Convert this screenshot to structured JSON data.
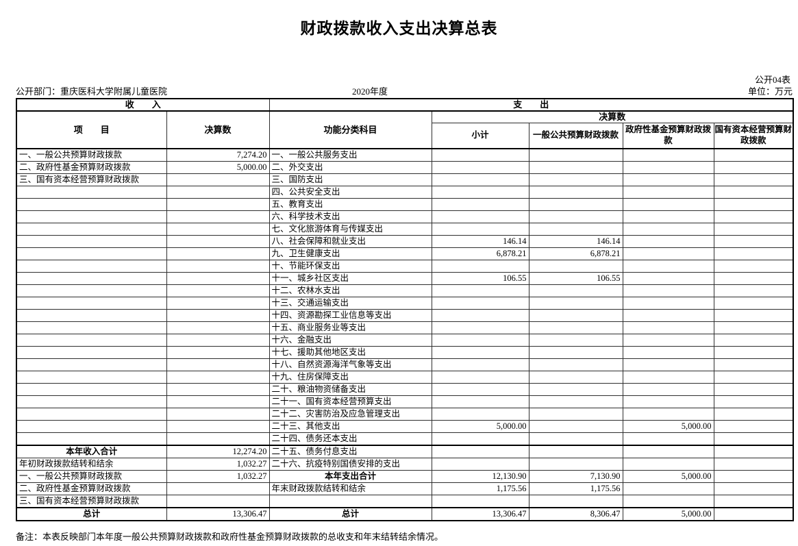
{
  "page": {
    "title": "财政拨款收入支出决算总表",
    "form_number": "公开04表",
    "unit_label": "单位：万元",
    "department": "公开部门：重庆医科大学附属儿童医院",
    "fiscal_year": "2020年度",
    "footnote": "备注：本表反映部门本年度一般公共预算财政拨款和政府性基金预算财政拨款的总收支和年末结转结余情况。"
  },
  "table": {
    "income_section_header": "收　　入",
    "expense_section_header": "支　　出",
    "columns": {
      "item": "项　　目",
      "income_amount": "决算数",
      "function_subject": "功能分类科目",
      "expense_amount_group": "决算数",
      "subtotal": "小计",
      "general_public_budget": "一般公共预算财政拨款",
      "gov_fund_budget": "政府性基金预算财政拨款",
      "state_capital_budget": "国有资本经营预算财政拨款"
    },
    "rows": [
      {
        "income_item": "一、一般公共预算财政拨款",
        "income_amount": "7,274.20",
        "expense_item": "一、一般公共服务支出",
        "subtotal": "",
        "general": "",
        "gov_fund": "",
        "state_capital": ""
      },
      {
        "income_item": "二、政府性基金预算财政拨款",
        "income_amount": "5,000.00",
        "expense_item": "二、外交支出",
        "subtotal": "",
        "general": "",
        "gov_fund": "",
        "state_capital": ""
      },
      {
        "income_item": "三、国有资本经营预算财政拨款",
        "income_amount": "",
        "expense_item": "三、国防支出",
        "subtotal": "",
        "general": "",
        "gov_fund": "",
        "state_capital": ""
      },
      {
        "income_item": "",
        "income_amount": "",
        "expense_item": "四、公共安全支出",
        "subtotal": "",
        "general": "",
        "gov_fund": "",
        "state_capital": ""
      },
      {
        "income_item": "",
        "income_amount": "",
        "expense_item": "五、教育支出",
        "subtotal": "",
        "general": "",
        "gov_fund": "",
        "state_capital": ""
      },
      {
        "income_item": "",
        "income_amount": "",
        "expense_item": "六、科学技术支出",
        "subtotal": "",
        "general": "",
        "gov_fund": "",
        "state_capital": ""
      },
      {
        "income_item": "",
        "income_amount": "",
        "expense_item": "七、文化旅游体育与传媒支出",
        "subtotal": "",
        "general": "",
        "gov_fund": "",
        "state_capital": ""
      },
      {
        "income_item": "",
        "income_amount": "",
        "expense_item": "八、社会保障和就业支出",
        "subtotal": "146.14",
        "general": "146.14",
        "gov_fund": "",
        "state_capital": ""
      },
      {
        "income_item": "",
        "income_amount": "",
        "expense_item": "九、卫生健康支出",
        "subtotal": "6,878.21",
        "general": "6,878.21",
        "gov_fund": "",
        "state_capital": ""
      },
      {
        "income_item": "",
        "income_amount": "",
        "expense_item": "十、节能环保支出",
        "subtotal": "",
        "general": "",
        "gov_fund": "",
        "state_capital": ""
      },
      {
        "income_item": "",
        "income_amount": "",
        "expense_item": "十一、城乡社区支出",
        "subtotal": "106.55",
        "general": "106.55",
        "gov_fund": "",
        "state_capital": ""
      },
      {
        "income_item": "",
        "income_amount": "",
        "expense_item": "十二、农林水支出",
        "subtotal": "",
        "general": "",
        "gov_fund": "",
        "state_capital": ""
      },
      {
        "income_item": "",
        "income_amount": "",
        "expense_item": "十三、交通运输支出",
        "subtotal": "",
        "general": "",
        "gov_fund": "",
        "state_capital": ""
      },
      {
        "income_item": "",
        "income_amount": "",
        "expense_item": "十四、资源勘探工业信息等支出",
        "subtotal": "",
        "general": "",
        "gov_fund": "",
        "state_capital": ""
      },
      {
        "income_item": "",
        "income_amount": "",
        "expense_item": "十五、商业服务业等支出",
        "subtotal": "",
        "general": "",
        "gov_fund": "",
        "state_capital": ""
      },
      {
        "income_item": "",
        "income_amount": "",
        "expense_item": "十六、金融支出",
        "subtotal": "",
        "general": "",
        "gov_fund": "",
        "state_capital": ""
      },
      {
        "income_item": "",
        "income_amount": "",
        "expense_item": "十七、援助其他地区支出",
        "subtotal": "",
        "general": "",
        "gov_fund": "",
        "state_capital": ""
      },
      {
        "income_item": "",
        "income_amount": "",
        "expense_item": "十八、自然资源海洋气象等支出",
        "subtotal": "",
        "general": "",
        "gov_fund": "",
        "state_capital": ""
      },
      {
        "income_item": "",
        "income_amount": "",
        "expense_item": "十九、住房保障支出",
        "subtotal": "",
        "general": "",
        "gov_fund": "",
        "state_capital": ""
      },
      {
        "income_item": "",
        "income_amount": "",
        "expense_item": "二十、粮油物资储备支出",
        "subtotal": "",
        "general": "",
        "gov_fund": "",
        "state_capital": ""
      },
      {
        "income_item": "",
        "income_amount": "",
        "expense_item": "二十一、国有资本经营预算支出",
        "subtotal": "",
        "general": "",
        "gov_fund": "",
        "state_capital": ""
      },
      {
        "income_item": "",
        "income_amount": "",
        "expense_item": "二十二、灾害防治及应急管理支出",
        "subtotal": "",
        "general": "",
        "gov_fund": "",
        "state_capital": ""
      },
      {
        "income_item": "",
        "income_amount": "",
        "expense_item": "二十三、其他支出",
        "subtotal": "5,000.00",
        "general": "",
        "gov_fund": "5,000.00",
        "state_capital": ""
      },
      {
        "income_item": "",
        "income_amount": "",
        "expense_item": "二十四、债务还本支出",
        "subtotal": "",
        "general": "",
        "gov_fund": "",
        "state_capital": ""
      },
      {
        "income_item": "本年收入合计",
        "income_total": true,
        "income_amount": "12,274.20",
        "expense_item": "二十五、债务付息支出",
        "subtotal": "",
        "general": "",
        "gov_fund": "",
        "state_capital": "",
        "section_break": true
      },
      {
        "income_item": "年初财政拨款结转和结余",
        "income_amount": "1,032.27",
        "expense_item": "二十六、抗疫特别国债安排的支出",
        "subtotal": "",
        "general": "",
        "gov_fund": "",
        "state_capital": ""
      },
      {
        "income_item": "一、一般公共预算财政拨款",
        "income_amount": "1,032.27",
        "expense_item": "本年支出合计",
        "expense_total": true,
        "subtotal": "12,130.90",
        "general": "7,130.90",
        "gov_fund": "5,000.00",
        "state_capital": ""
      },
      {
        "income_item": "二、政府性基金预算财政拨款",
        "income_amount": "",
        "expense_item": "年末财政拨款结转和结余",
        "subtotal": "1,175.56",
        "general": "1,175.56",
        "gov_fund": "",
        "state_capital": ""
      },
      {
        "income_item": "三、国有资本经营预算财政拨款",
        "income_amount": "",
        "expense_item": "",
        "subtotal": "",
        "general": "",
        "gov_fund": "",
        "state_capital": ""
      },
      {
        "income_item": "总计",
        "income_total": true,
        "income_amount": "13,306.47",
        "expense_item": "总计",
        "expense_total": true,
        "subtotal": "13,306.47",
        "general": "8,306.47",
        "gov_fund": "5,000.00",
        "state_capital": "",
        "section_break": true
      }
    ]
  }
}
